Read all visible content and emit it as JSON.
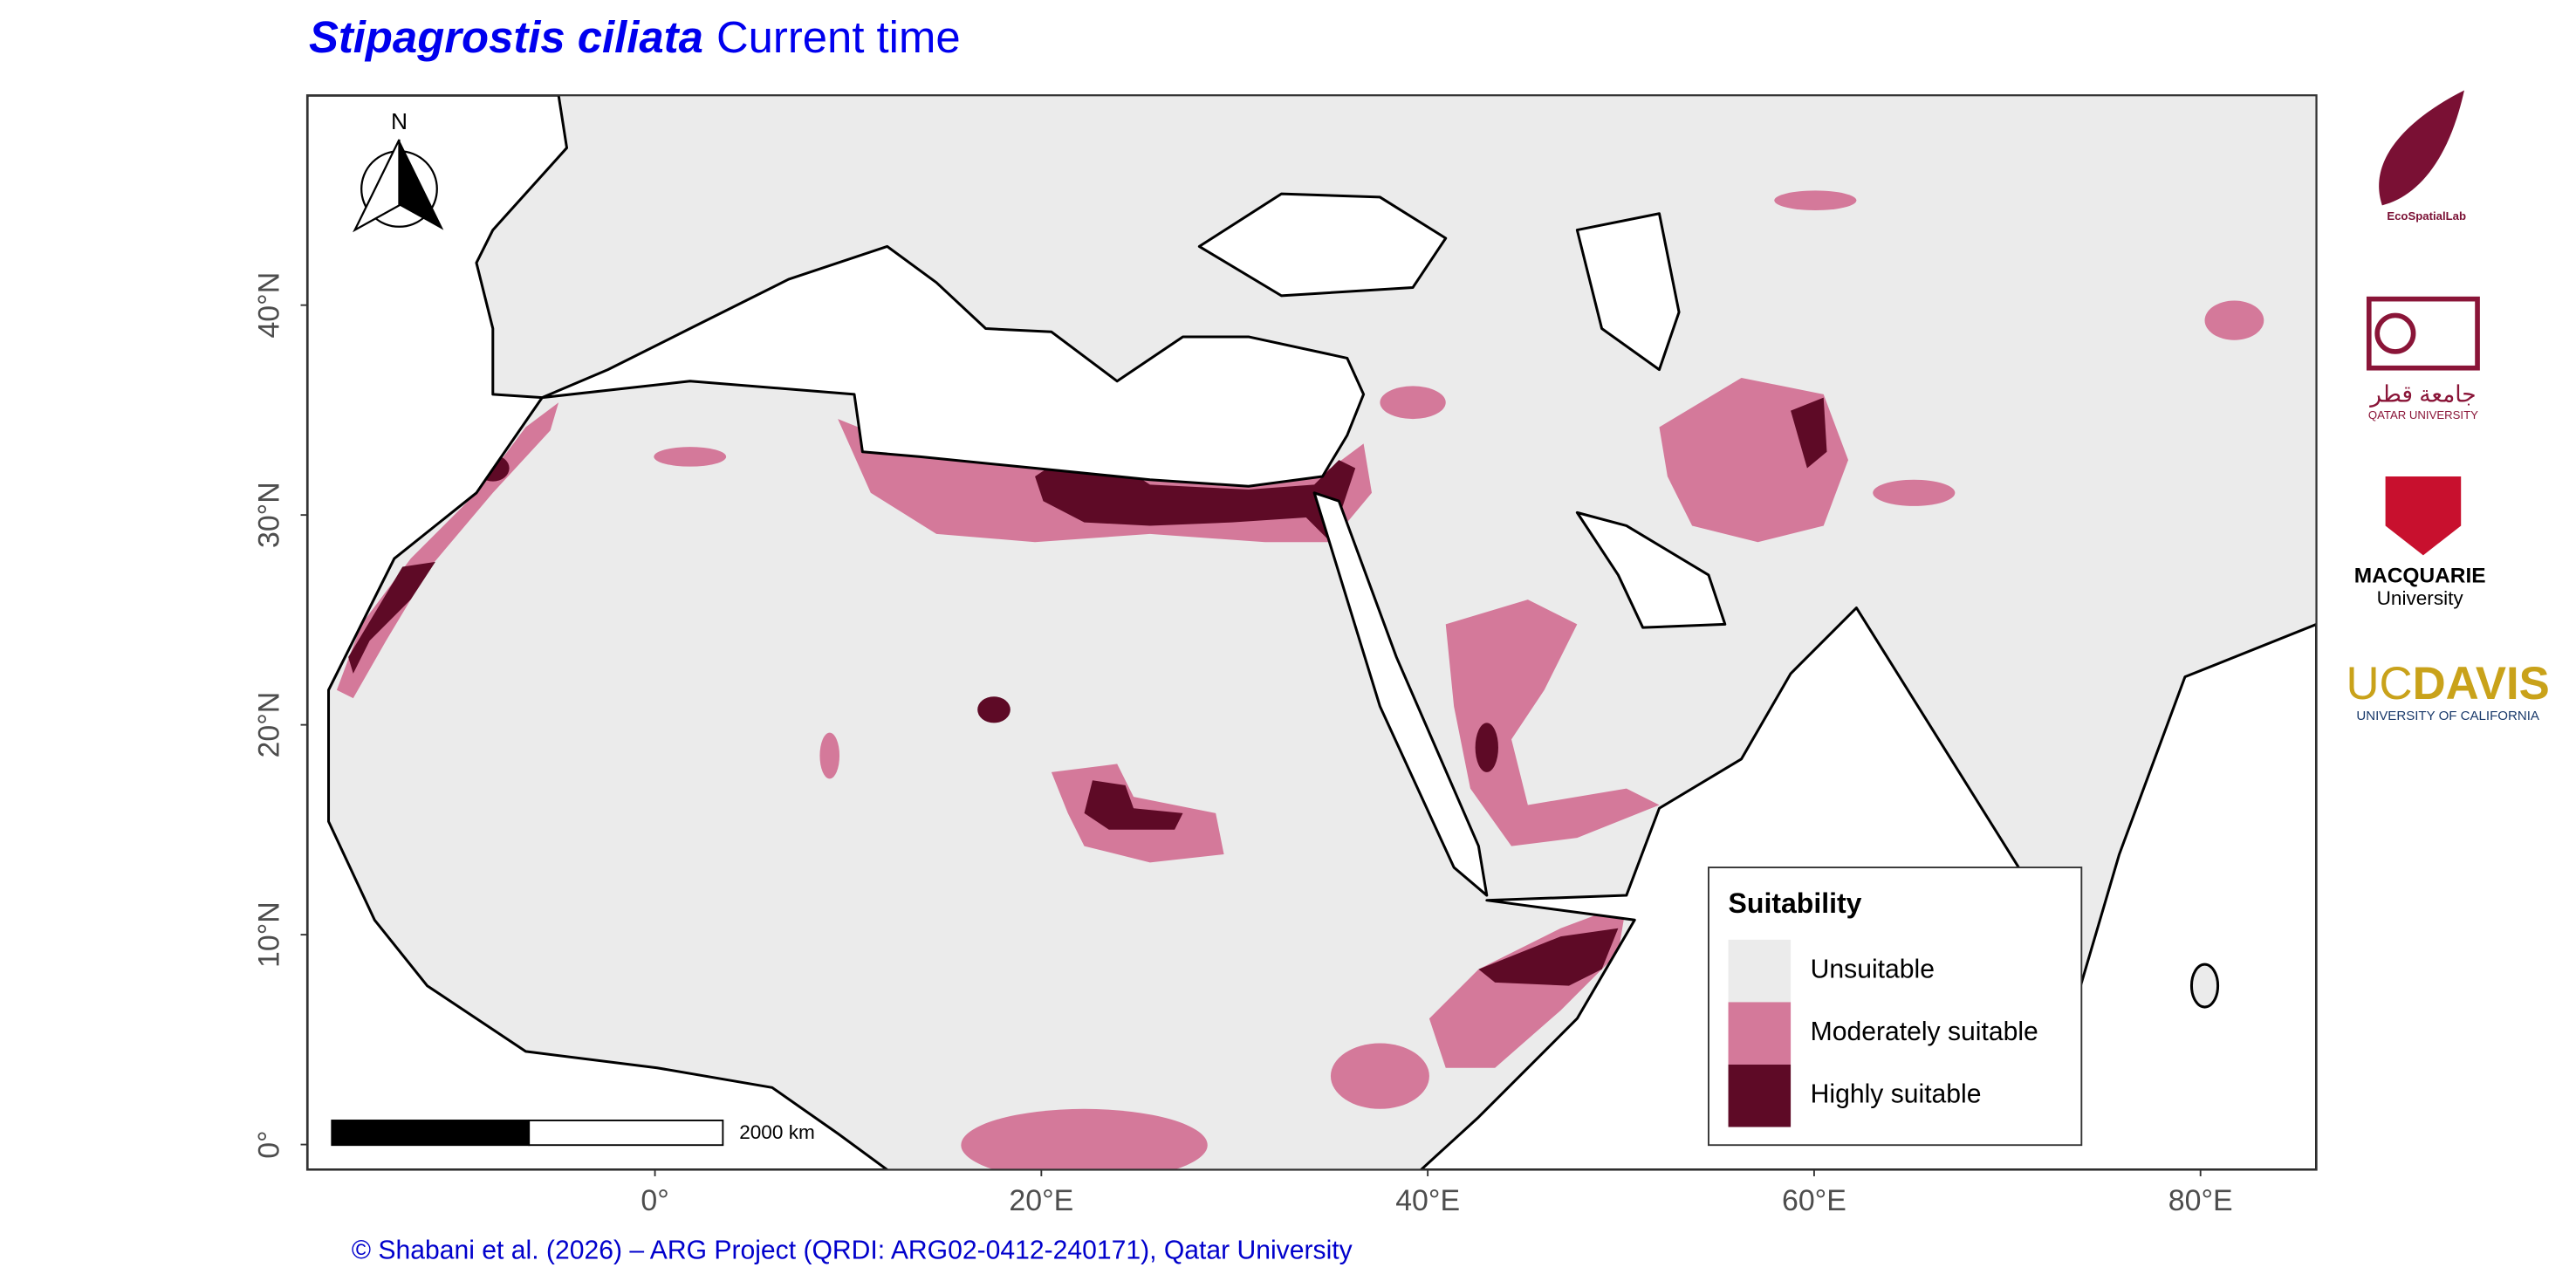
{
  "title": {
    "species": "Stipagrostis ciliata",
    "period": "Current time"
  },
  "map": {
    "xlim": [
      -18,
      86
    ],
    "ylim": [
      -1.2,
      50
    ],
    "xticks": [
      {
        "value": 0,
        "label": "0°"
      },
      {
        "value": 20,
        "label": "20°E"
      },
      {
        "value": 40,
        "label": "40°E"
      },
      {
        "value": 60,
        "label": "60°E"
      },
      {
        "value": 80,
        "label": "80°E"
      }
    ],
    "yticks": [
      {
        "value": 0,
        "label": "0°"
      },
      {
        "value": 10,
        "label": "10°N"
      },
      {
        "value": 20,
        "label": "20°N"
      },
      {
        "value": 30,
        "label": "30°N"
      },
      {
        "value": 40,
        "label": "40°N"
      }
    ],
    "north_label": "N",
    "scale_bar_label": "2000 km"
  },
  "legend": {
    "title": "Suitability",
    "items": [
      {
        "label": "Unsuitable",
        "color": "#ebebeb"
      },
      {
        "label": "Moderately suitable",
        "color": "#d4799a"
      },
      {
        "label": "Highly suitable",
        "color": "#5e0a26"
      }
    ]
  },
  "credit": "© Shabani et al. (2026) – ARG Project (QRDI: ARG02-0412-240171), Qatar University",
  "logos": {
    "ecospatial": "EcoSpatialLab",
    "qatar_arabic": "جامعة قطر",
    "qatar_english": "QATAR UNIVERSITY",
    "macquarie": "MACQUARIE",
    "macquarie_sub": "University",
    "ucdavis_uc": "UC",
    "ucdavis_davis": "DAVIS",
    "ucdavis_sub": "UNIVERSITY OF CALIFORNIA"
  }
}
